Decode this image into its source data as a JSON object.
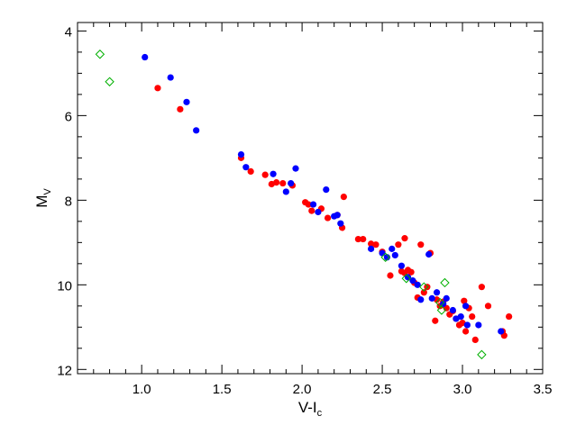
{
  "chart_data": {
    "type": "scatter",
    "title": "",
    "xlabel": "V-I",
    "xlabel_sub": "c",
    "ylabel": "M",
    "ylabel_sub": "V",
    "xlim": [
      0.6,
      3.5
    ],
    "ylim": [
      12.1,
      3.8
    ],
    "y_inverted": true,
    "grid": false,
    "x_ticks": [
      1.0,
      1.5,
      2.0,
      2.5,
      3.0,
      3.5
    ],
    "x_tick_labels": [
      "1.0",
      "1.5",
      "2.0",
      "2.5",
      "3.0",
      "3.5"
    ],
    "y_ticks": [
      4,
      6,
      8,
      10,
      12
    ],
    "y_tick_labels": [
      "4",
      "6",
      "8",
      "10",
      "12"
    ],
    "series": [
      {
        "marker": "circle",
        "color": "#ff0000",
        "points": [
          [
            1.1,
            5.35
          ],
          [
            1.24,
            5.85
          ],
          [
            1.62,
            7.0
          ],
          [
            1.68,
            7.32
          ],
          [
            1.77,
            7.4
          ],
          [
            1.81,
            7.62
          ],
          [
            1.84,
            7.58
          ],
          [
            1.88,
            7.6
          ],
          [
            1.94,
            7.65
          ],
          [
            2.02,
            8.05
          ],
          [
            2.04,
            8.1
          ],
          [
            2.06,
            8.25
          ],
          [
            2.12,
            8.2
          ],
          [
            2.16,
            8.42
          ],
          [
            2.22,
            8.35
          ],
          [
            2.25,
            8.65
          ],
          [
            2.26,
            7.92
          ],
          [
            2.35,
            8.92
          ],
          [
            2.38,
            8.92
          ],
          [
            2.43,
            9.03
          ],
          [
            2.46,
            9.05
          ],
          [
            2.5,
            9.22
          ],
          [
            2.55,
            9.78
          ],
          [
            2.6,
            9.05
          ],
          [
            2.62,
            9.68
          ],
          [
            2.64,
            8.9
          ],
          [
            2.64,
            9.72
          ],
          [
            2.66,
            9.65
          ],
          [
            2.68,
            9.7
          ],
          [
            2.7,
            9.95
          ],
          [
            2.72,
            10.3
          ],
          [
            2.74,
            9.05
          ],
          [
            2.76,
            10.18
          ],
          [
            2.78,
            10.05
          ],
          [
            2.8,
            9.25
          ],
          [
            2.83,
            10.85
          ],
          [
            2.84,
            10.35
          ],
          [
            2.86,
            10.5
          ],
          [
            2.88,
            10.4
          ],
          [
            2.9,
            10.55
          ],
          [
            2.92,
            10.7
          ],
          [
            2.94,
            10.62
          ],
          [
            2.96,
            10.8
          ],
          [
            2.98,
            10.95
          ],
          [
            3.0,
            10.9
          ],
          [
            3.01,
            10.38
          ],
          [
            3.02,
            11.1
          ],
          [
            3.04,
            10.55
          ],
          [
            3.06,
            10.75
          ],
          [
            3.08,
            11.3
          ],
          [
            3.12,
            10.05
          ],
          [
            3.16,
            10.5
          ],
          [
            3.25,
            11.1
          ],
          [
            3.26,
            11.2
          ],
          [
            3.29,
            10.75
          ]
        ]
      },
      {
        "marker": "circle",
        "color": "#0000ff",
        "points": [
          [
            1.02,
            4.62
          ],
          [
            1.18,
            5.1
          ],
          [
            1.28,
            5.68
          ],
          [
            1.34,
            6.35
          ],
          [
            1.62,
            6.92
          ],
          [
            1.65,
            7.22
          ],
          [
            1.82,
            7.38
          ],
          [
            1.9,
            7.8
          ],
          [
            1.93,
            7.6
          ],
          [
            1.96,
            7.25
          ],
          [
            2.07,
            8.1
          ],
          [
            2.1,
            8.28
          ],
          [
            2.15,
            7.75
          ],
          [
            2.2,
            8.38
          ],
          [
            2.22,
            8.35
          ],
          [
            2.24,
            8.55
          ],
          [
            2.43,
            9.15
          ],
          [
            2.5,
            9.25
          ],
          [
            2.53,
            9.35
          ],
          [
            2.56,
            9.15
          ],
          [
            2.58,
            9.3
          ],
          [
            2.62,
            9.55
          ],
          [
            2.66,
            9.82
          ],
          [
            2.69,
            9.9
          ],
          [
            2.72,
            10.0
          ],
          [
            2.74,
            10.35
          ],
          [
            2.79,
            9.28
          ],
          [
            2.81,
            10.32
          ],
          [
            2.84,
            10.18
          ],
          [
            2.88,
            10.45
          ],
          [
            2.9,
            10.32
          ],
          [
            2.94,
            10.6
          ],
          [
            2.96,
            10.8
          ],
          [
            2.99,
            10.75
          ],
          [
            3.02,
            10.5
          ],
          [
            3.03,
            10.95
          ],
          [
            3.1,
            10.95
          ],
          [
            3.24,
            11.1
          ]
        ]
      },
      {
        "marker": "diamond-open",
        "color": "#00b000",
        "points": [
          [
            0.74,
            4.55
          ],
          [
            0.8,
            5.2
          ],
          [
            2.52,
            9.35
          ],
          [
            2.65,
            9.85
          ],
          [
            2.76,
            10.05
          ],
          [
            2.86,
            10.42
          ],
          [
            2.87,
            10.6
          ],
          [
            2.89,
            9.95
          ],
          [
            3.12,
            11.65
          ]
        ]
      }
    ]
  }
}
